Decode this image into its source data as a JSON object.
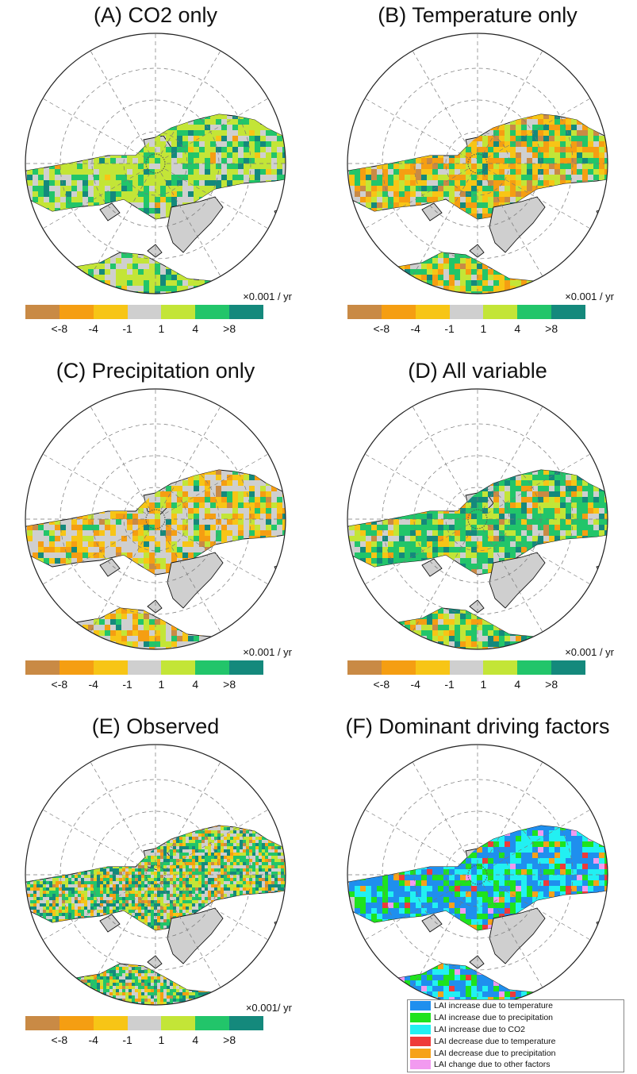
{
  "panels": [
    {
      "id": "A",
      "title": "(A)  CO2 only",
      "unit": "×0.001 / yr",
      "mode": "co2"
    },
    {
      "id": "B",
      "title": "(B)  Temperature only",
      "unit": "×0.001 / yr",
      "mode": "temp"
    },
    {
      "id": "C",
      "title": "(C)  Precipitation only",
      "unit": "×0.001 / yr",
      "mode": "precip"
    },
    {
      "id": "D",
      "title": "(D)  All variable",
      "unit": "×0.001 / yr",
      "mode": "all"
    },
    {
      "id": "E",
      "title": "(E)  Observed",
      "unit": "×0.001/ yr",
      "mode": "obs"
    },
    {
      "id": "F",
      "title": "(F)  Dominant driving factors",
      "unit": "",
      "mode": "factors"
    }
  ],
  "colorbar": {
    "colors": [
      "#c98a45",
      "#f59e12",
      "#f7c516",
      "#cfcfcf",
      "#c3e537",
      "#22c56a",
      "#14897c"
    ],
    "ticks": [
      "<-8",
      "-4",
      "-1",
      "1",
      "4",
      ">8"
    ]
  },
  "legend": {
    "items": [
      {
        "label": "LAI increase due to temperature",
        "color": "#1f8fee"
      },
      {
        "label": "LAI increase due to precipitation",
        "color": "#1ee31e"
      },
      {
        "label": "LAI increase due to CO2",
        "color": "#22f0f2"
      },
      {
        "label": "LAI decrease due to temperature",
        "color": "#ef3a3a"
      },
      {
        "label": "LAI decrease due to precipitation",
        "color": "#f6a21a"
      },
      {
        "label": "LAI change due to other factors",
        "color": "#f29af0"
      }
    ]
  }
}
